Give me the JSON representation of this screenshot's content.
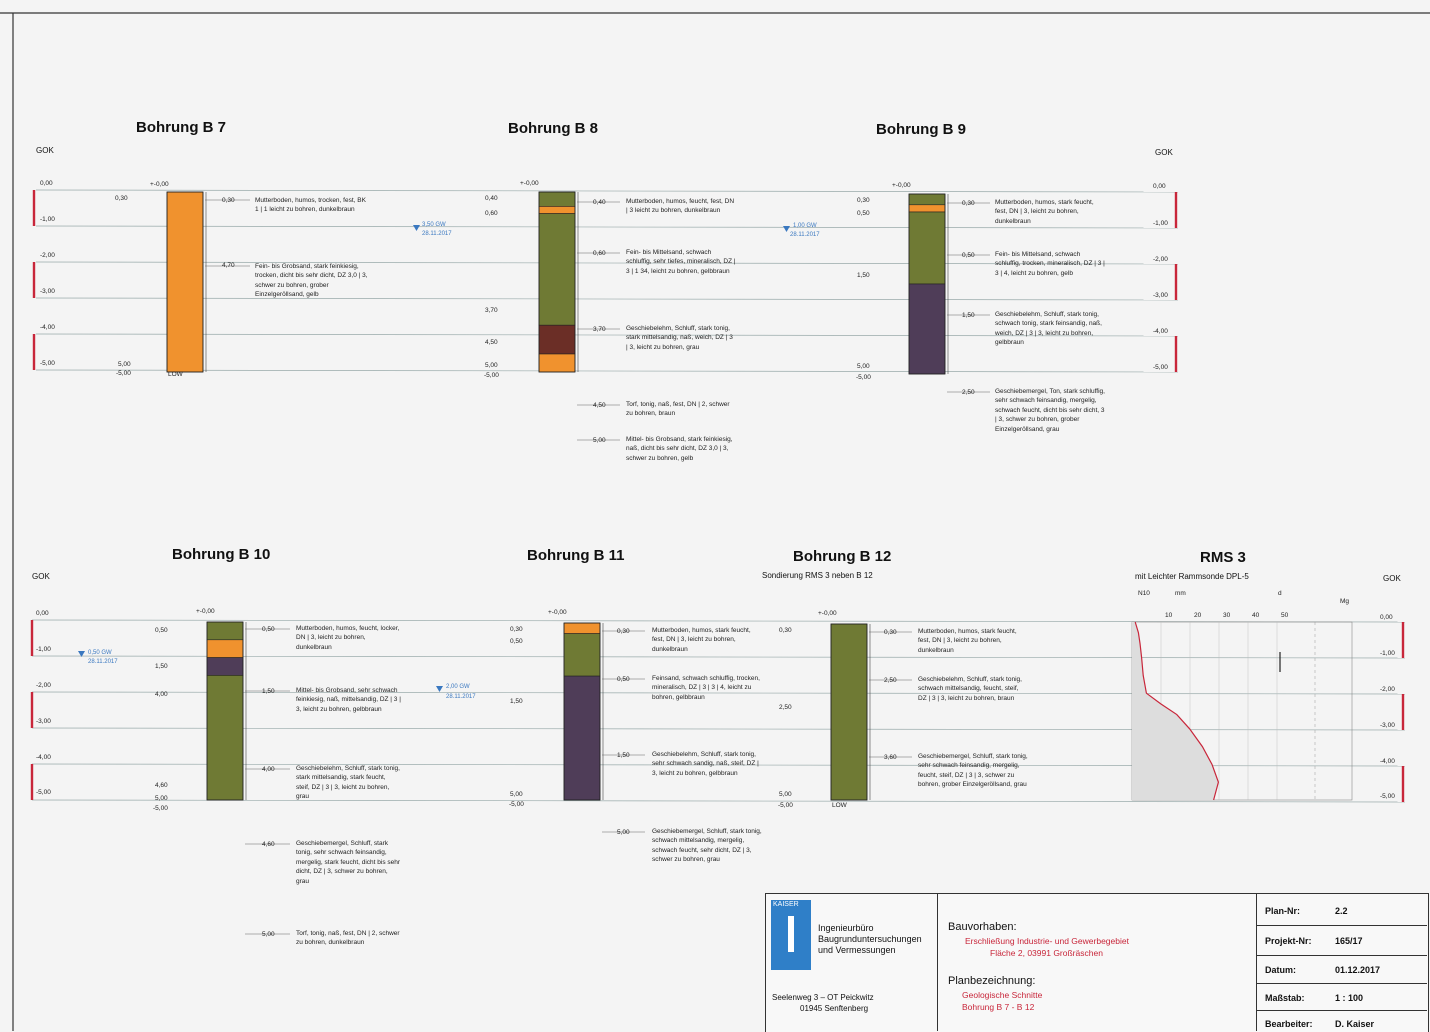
{
  "gok_label": "GOK",
  "boreholes": [
    {
      "title": "Bohrung B 7",
      "top": "+-0,00",
      "end": "5,00",
      "end2": "-5,00",
      "end_label": "LOW",
      "layers": [
        {
          "depth": "0,30",
          "text": "Mutterboden, humos, trocken, fest, BK 1 | 1 leicht zu bohren, dunkelbraun"
        },
        {
          "depth": "4,70",
          "text": "Fein- bis Grobsand, stark feinkiesig, trocken, dicht bis sehr dicht, DZ 3,0 | 3, schwer zu bohren, grober Einzelgeröllsand, gelb"
        }
      ],
      "water": {
        "level": "3,50 GW",
        "date": "28.11.2017"
      }
    },
    {
      "title": "Bohrung B 8",
      "top": "+-0,00",
      "end": "5,00",
      "end2": "-5,00",
      "layers": [
        {
          "depth": "0,40",
          "text": "Mutterboden, humos, feucht, fest, DN | 3 leicht zu bohren, dunkelbraun"
        },
        {
          "depth": "0,60",
          "text": "Fein- bis Mittelsand, schwach schluffig, sehr tiefes, mineralisch, DZ | 3 | 1 34, leicht zu bohren, gelbbraun"
        },
        {
          "depth": "3,70",
          "text": "Geschiebelehm, Schluff, stark tonig, stark mittelsandig, naß, weich, DZ | 3 | 3, leicht zu bohren, grau"
        },
        {
          "depth": "4,50",
          "text": "Torf, tonig, naß, fest, DN | 2, schwer zu bohren, braun"
        },
        {
          "depth": "5,00",
          "text": "Mittel- bis Grobsand, stark feinkiesig, naß, dicht bis sehr dicht, DZ 3,0 | 3, schwer zu bohren, gelb"
        }
      ],
      "water": {
        "level": "1,00 GW",
        "date": "28.11.2017"
      }
    },
    {
      "title": "Bohrung B 9",
      "top": "+-0,00",
      "end": "5,00",
      "end2": "-5,00",
      "layers": [
        {
          "depth": "0,30",
          "text": "Mutterboden, humos, stark feucht, fest, DN | 3, leicht zu bohren, dunkelbraun"
        },
        {
          "depth": "0,50",
          "text": "Fein- bis Mittelsand, schwach schluffig, trocken, mineralisch, DZ | 3 | 3 | 4, leicht zu bohren, gelb"
        },
        {
          "depth": "1,50",
          "text": "Geschiebelehm, Schluff, stark tonig, schwach tonig, stark feinsandig, naß, weich, DZ | 3 | 3, leicht zu bohren, gelbbraun"
        },
        {
          "depth": "2,50",
          "text": "Geschiebemergel, Ton, stark schluffig, sehr schwach feinsandig, mergelig, schwach feucht, dicht bis sehr dicht, 3 | 3, schwer zu bohren, grober Einzelgeröllsand, grau"
        }
      ]
    },
    {
      "title": "Bohrung B 10",
      "top": "+-0,00",
      "end": "5,00",
      "end2": "-5,00",
      "layers": [
        {
          "depth": "0,50",
          "text": "Mutterboden, humos, feucht, locker, DN | 3, leicht zu bohren, dunkelbraun"
        },
        {
          "depth": "1,50",
          "text": "Mittel- bis Grobsand, sehr schwach feinkiesig, naß, mittelsandig, DZ | 3 | 3, leicht zu bohren, gelbbraun"
        },
        {
          "depth": "4,00",
          "text": "Geschiebelehm, Schluff, stark tonig, stark mittelsandig, stark feucht, steif, DZ | 3 | 3, leicht zu bohren, grau"
        },
        {
          "depth": "4,60",
          "text": "Geschiebemergel, Schluff, stark tonig, sehr schwach feinsandig, mergelig, stark feucht, dicht bis sehr dicht, DZ | 3, schwer zu bohren, grau"
        },
        {
          "depth": "5,00",
          "text": "Torf, tonig, naß, fest, DN | 2, schwer zu bohren, dunkelbraun"
        }
      ],
      "water": {
        "level": "0,50 GW",
        "date": "28.11.2017"
      }
    },
    {
      "title": "Bohrung B 11",
      "top": "+-0,00",
      "end": "5,00",
      "end2": "-5,00",
      "layers": [
        {
          "depth": "0,30",
          "text": "Mutterboden, humos, stark feucht, fest, DN | 3, leicht zu bohren, dunkelbraun"
        },
        {
          "depth": "0,50",
          "text": "Feinsand, schwach schluffig, trocken, mineralisch, DZ | 3 | 3 | 4, leicht zu bohren, gelbbraun"
        },
        {
          "depth": "1,50",
          "text": "Geschiebelehm, Schluff, stark tonig, sehr schwach sandig, naß, steif, DZ | 3, leicht zu bohren, gelbbraun"
        },
        {
          "depth": "5,00",
          "text": "Geschiebemergel, Schluff, stark tonig, schwach mittelsandig, mergelig, schwach feucht, sehr dicht, DZ | 3, schwer zu bohren, grau"
        }
      ],
      "water": {
        "level": "2,00 GW",
        "date": "28.11.2017"
      }
    },
    {
      "title": "Bohrung B 12",
      "subtitle": "Sondierung RMS 3 neben B 12",
      "top": "+-0,00",
      "end": "5,00",
      "end2": "-5,00",
      "end_label": "LOW",
      "layers": [
        {
          "depth": "0,30",
          "text": "Mutterboden, humos, stark feucht, fest, DN | 3, leicht zu bohren, dunkelbraun"
        },
        {
          "depth": "2,50",
          "text": "Geschiebelehm, Schluff, stark tonig, schwach mittelsandig, feucht, steif, DZ | 3 | 3, leicht zu bohren, braun"
        },
        {
          "depth": "3,60",
          "text": "Geschiebemergel, Schluff, stark tonig, sehr schwach feinsandig, mergelig, feucht, steif, DZ | 3 | 3, schwer zu bohren, grober Einzelgeröllsand, grau"
        }
      ]
    }
  ],
  "rms": {
    "title": "RMS 3",
    "subtitle": "mit Leichter Rammsonde DPL-5",
    "scale_ticks": [
      "10",
      "20",
      "30",
      "40",
      "50"
    ],
    "header_labels": [
      "N10",
      "mm",
      "d",
      "Mg"
    ]
  },
  "scale_values": [
    "0,00",
    "-1,00",
    "-2,00",
    "-3,00",
    "-4,00",
    "-5,00"
  ],
  "title_block": {
    "company": "KAISER",
    "company_lines": [
      "Ingenieurbüro",
      "Baugrunduntersuchungen",
      "und Vermessungen"
    ],
    "address1": "Seelenweg 3 – OT Peickwitz",
    "address2": "01945 Senftenberg",
    "bauvorhaben_label": "Bauvorhaben:",
    "bauvorhaben_1": "Erschließung Industrie- und Gewerbegebiet",
    "bauvorhaben_2": "Fläche 2, 03991 Großräschen",
    "plan_label": "Planbezeichnung:",
    "plan_1": "Geologische Schnitte",
    "plan_2": "Bohrung B 7 - B 12",
    "rows": [
      {
        "label": "Plan-Nr:",
        "value": "2.2"
      },
      {
        "label": "Projekt-Nr:",
        "value": "165/17"
      },
      {
        "label": "Datum:",
        "value": "01.12.2017"
      },
      {
        "label": "Maßstab:",
        "value": "1 : 100"
      },
      {
        "label": "Bearbeiter:",
        "value": "D. Kaiser"
      }
    ]
  },
  "colors": {
    "sand": "#f0922e",
    "olive": "#6f7a34",
    "purple": "#4f3d58",
    "brown": "#6b2e26",
    "red": "#c8263a",
    "blue": "#3a78c0"
  }
}
